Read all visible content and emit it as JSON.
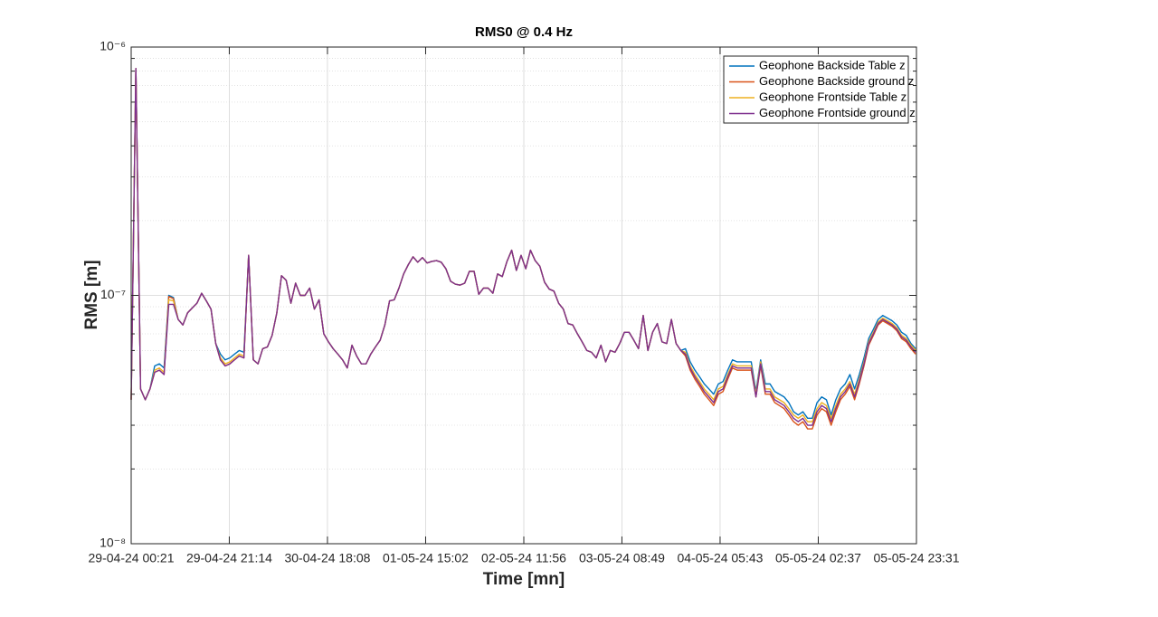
{
  "chart_data": {
    "type": "line",
    "title": "RMS0 @ 0.4 Hz",
    "xlabel": "Time [mn]",
    "ylabel": "RMS [m]",
    "log_y": true,
    "grid": true,
    "minor_grid": true,
    "legend": "upper right",
    "xlim": [
      0,
      10030
    ],
    "xticks": [
      {
        "value": 0,
        "label": "29-04-24 00:21"
      },
      {
        "value": 1253,
        "label": "29-04-24 21:14"
      },
      {
        "value": 2507,
        "label": "30-04-24 18:08"
      },
      {
        "value": 3761,
        "label": "01-05-24 15:02"
      },
      {
        "value": 5015,
        "label": "02-05-24 11:56"
      },
      {
        "value": 6268,
        "label": "03-05-24 08:49"
      },
      {
        "value": 7522,
        "label": "04-05-24 05:43"
      },
      {
        "value": 8776,
        "label": "05-05-24 02:37"
      },
      {
        "value": 10030,
        "label": "05-05-24 23:31"
      }
    ],
    "ylim": [
      1e-08,
      1e-06
    ],
    "yticks": [
      {
        "value": 1e-08,
        "label": "10⁻⁸"
      },
      {
        "value": 1e-07,
        "label": "10⁻⁷"
      },
      {
        "value": 1e-06,
        "label": "10⁻⁶"
      }
    ],
    "yminorticks": [
      2e-08,
      3e-08,
      4e-08,
      5e-08,
      6e-08,
      7e-08,
      8e-08,
      9e-08,
      2e-07,
      3e-07,
      4e-07,
      5e-07,
      6e-07,
      7e-07,
      8e-07,
      9e-07
    ],
    "x": [
      0,
      60,
      120,
      180,
      240,
      300,
      360,
      420,
      480,
      540,
      600,
      660,
      720,
      780,
      840,
      900,
      960,
      1020,
      1080,
      1140,
      1200,
      1260,
      1320,
      1380,
      1440,
      1500,
      1560,
      1620,
      1680,
      1740,
      1800,
      1860,
      1920,
      1980,
      2040,
      2100,
      2160,
      2220,
      2280,
      2340,
      2400,
      2460,
      2520,
      2580,
      2640,
      2700,
      2760,
      2820,
      2880,
      2940,
      3000,
      3060,
      3120,
      3180,
      3240,
      3300,
      3360,
      3420,
      3480,
      3540,
      3600,
      3660,
      3720,
      3780,
      3840,
      3900,
      3960,
      4020,
      4080,
      4140,
      4200,
      4260,
      4320,
      4380,
      4440,
      4500,
      4560,
      4620,
      4680,
      4740,
      4800,
      4860,
      4920,
      4980,
      5040,
      5100,
      5160,
      5220,
      5280,
      5340,
      5400,
      5460,
      5520,
      5580,
      5640,
      5700,
      5760,
      5820,
      5880,
      5940,
      6000,
      6060,
      6120,
      6180,
      6240,
      6300,
      6360,
      6420,
      6480,
      6540,
      6600,
      6660,
      6720,
      6780,
      6840,
      6900,
      6960,
      7020,
      7080,
      7140,
      7200,
      7260,
      7320,
      7380,
      7440,
      7500,
      7560,
      7620,
      7680,
      7740,
      7800,
      7860,
      7920,
      7980,
      8040,
      8100,
      8160,
      8220,
      8280,
      8340,
      8400,
      8460,
      8520,
      8580,
      8640,
      8700,
      8760,
      8820,
      8880,
      8940,
      9000,
      9060,
      9120,
      9180,
      9240,
      9300,
      9360,
      9420,
      9480,
      9540,
      9600,
      9660,
      9720,
      9780,
      9840,
      9900,
      9960,
      10020
    ],
    "series": [
      {
        "name": "Geophone Backside Table z",
        "color": "#0072BD",
        "values": [
          3.8e-08,
          8.2e-07,
          4.2e-08,
          3.8e-08,
          4.2e-08,
          5.2e-08,
          5.3e-08,
          5.1e-08,
          1e-07,
          9.8e-08,
          8e-08,
          7.6e-08,
          8.5e-08,
          8.9e-08,
          9.3e-08,
          1.02e-07,
          9.5e-08,
          8.8e-08,
          6.4e-08,
          5.8e-08,
          5.5e-08,
          5.6e-08,
          5.8e-08,
          6e-08,
          5.9e-08,
          1.45e-07,
          5.5e-08,
          5.3e-08,
          6.1e-08,
          6.2e-08,
          6.9e-08,
          8.5e-08,
          1.2e-07,
          1.15e-07,
          9.3e-08,
          1.12e-07,
          1e-07,
          1e-07,
          1.07e-07,
          8.8e-08,
          9.6e-08,
          7e-08,
          6.5e-08,
          6.1e-08,
          5.8e-08,
          5.5e-08,
          5.1e-08,
          6.3e-08,
          5.7e-08,
          5.3e-08,
          5.3e-08,
          5.8e-08,
          6.2e-08,
          6.6e-08,
          7.6e-08,
          9.5e-08,
          9.6e-08,
          1.07e-07,
          1.22e-07,
          1.33e-07,
          1.43e-07,
          1.36e-07,
          1.42e-07,
          1.35e-07,
          1.37e-07,
          1.38e-07,
          1.36e-07,
          1.28e-07,
          1.14e-07,
          1.11e-07,
          1.1e-07,
          1.12e-07,
          1.25e-07,
          1.25e-07,
          1.01e-07,
          1.07e-07,
          1.07e-07,
          1.02e-07,
          1.22e-07,
          1.19e-07,
          1.37e-07,
          1.52e-07,
          1.26e-07,
          1.45e-07,
          1.28e-07,
          1.52e-07,
          1.38e-07,
          1.31e-07,
          1.13e-07,
          1.06e-07,
          1.04e-07,
          9.3e-08,
          8.8e-08,
          7.7e-08,
          7.6e-08,
          7e-08,
          6.5e-08,
          6e-08,
          5.9e-08,
          5.6e-08,
          6.3e-08,
          5.4e-08,
          6e-08,
          5.9e-08,
          6.4e-08,
          7.1e-08,
          7.1e-08,
          6.6e-08,
          6.1e-08,
          8.3e-08,
          6e-08,
          7.1e-08,
          7.7e-08,
          6.5e-08,
          6.4e-08,
          8e-08,
          6.4e-08,
          6e-08,
          6.1e-08,
          5.4e-08,
          5e-08,
          4.7e-08,
          4.4e-08,
          4.2e-08,
          4e-08,
          4.4e-08,
          4.5e-08,
          5e-08,
          5.5e-08,
          5.4e-08,
          5.4e-08,
          5.4e-08,
          5.4e-08,
          4.1e-08,
          5.5e-08,
          4.4e-08,
          4.4e-08,
          4.1e-08,
          4e-08,
          3.9e-08,
          3.7e-08,
          3.4e-08,
          3.3e-08,
          3.4e-08,
          3.2e-08,
          3.2e-08,
          3.7e-08,
          3.9e-08,
          3.8e-08,
          3.3e-08,
          3.8e-08,
          4.2e-08,
          4.4e-08,
          4.8e-08,
          4.2e-08,
          4.8e-08,
          5.6e-08,
          6.7e-08,
          7.3e-08,
          8e-08,
          8.3e-08,
          8.1e-08,
          7.9e-08,
          7.6e-08,
          7.1e-08,
          6.9e-08,
          6.4e-08,
          6.1e-08
        ]
      },
      {
        "name": "Geophone Backside ground z",
        "color": "#D95319",
        "values": [
          3.8e-08,
          8.2e-07,
          4.2e-08,
          3.8e-08,
          4.2e-08,
          4.9e-08,
          5e-08,
          4.8e-08,
          9.9e-08,
          9.7e-08,
          8e-08,
          7.6e-08,
          8.5e-08,
          8.9e-08,
          9.3e-08,
          1.02e-07,
          9.5e-08,
          8.8e-08,
          6.4e-08,
          5.5e-08,
          5.2e-08,
          5.3e-08,
          5.5e-08,
          5.7e-08,
          5.6e-08,
          1.45e-07,
          5.5e-08,
          5.3e-08,
          6.1e-08,
          6.2e-08,
          6.9e-08,
          8.5e-08,
          1.2e-07,
          1.15e-07,
          9.3e-08,
          1.12e-07,
          1e-07,
          1e-07,
          1.07e-07,
          8.8e-08,
          9.6e-08,
          7e-08,
          6.5e-08,
          6.1e-08,
          5.8e-08,
          5.5e-08,
          5.1e-08,
          6.3e-08,
          5.7e-08,
          5.3e-08,
          5.3e-08,
          5.8e-08,
          6.2e-08,
          6.6e-08,
          7.6e-08,
          9.5e-08,
          9.6e-08,
          1.07e-07,
          1.22e-07,
          1.33e-07,
          1.43e-07,
          1.36e-07,
          1.42e-07,
          1.35e-07,
          1.37e-07,
          1.38e-07,
          1.36e-07,
          1.28e-07,
          1.14e-07,
          1.11e-07,
          1.1e-07,
          1.12e-07,
          1.25e-07,
          1.25e-07,
          1.01e-07,
          1.07e-07,
          1.07e-07,
          1.02e-07,
          1.22e-07,
          1.19e-07,
          1.37e-07,
          1.52e-07,
          1.26e-07,
          1.45e-07,
          1.28e-07,
          1.52e-07,
          1.38e-07,
          1.31e-07,
          1.13e-07,
          1.06e-07,
          1.04e-07,
          9.3e-08,
          8.8e-08,
          7.7e-08,
          7.6e-08,
          7e-08,
          6.5e-08,
          6e-08,
          5.9e-08,
          5.6e-08,
          6.3e-08,
          5.4e-08,
          6e-08,
          5.9e-08,
          6.4e-08,
          7.1e-08,
          7.1e-08,
          6.6e-08,
          6.1e-08,
          8.3e-08,
          6e-08,
          7.1e-08,
          7.7e-08,
          6.5e-08,
          6.4e-08,
          8e-08,
          6.4e-08,
          6e-08,
          5.7e-08,
          5e-08,
          4.6e-08,
          4.3e-08,
          4e-08,
          3.8e-08,
          3.6e-08,
          4e-08,
          4.1e-08,
          4.6e-08,
          5.1e-08,
          5e-08,
          5e-08,
          5e-08,
          5e-08,
          3.9e-08,
          5.2e-08,
          4e-08,
          4e-08,
          3.7e-08,
          3.6e-08,
          3.5e-08,
          3.3e-08,
          3.1e-08,
          3e-08,
          3.1e-08,
          2.9e-08,
          2.9e-08,
          3.3e-08,
          3.5e-08,
          3.4e-08,
          3e-08,
          3.4e-08,
          3.8e-08,
          4e-08,
          4.3e-08,
          3.8e-08,
          4.4e-08,
          5.2e-08,
          6.3e-08,
          6.9e-08,
          7.6e-08,
          7.9e-08,
          7.7e-08,
          7.5e-08,
          7.2e-08,
          6.7e-08,
          6.5e-08,
          6.1e-08,
          5.8e-08
        ]
      },
      {
        "name": "Geophone Frontside Table z",
        "color": "#EDB120",
        "values": [
          3.8e-08,
          8.2e-07,
          4.2e-08,
          3.8e-08,
          4.2e-08,
          5e-08,
          5.1e-08,
          4.9e-08,
          9.6e-08,
          9.5e-08,
          8e-08,
          7.6e-08,
          8.5e-08,
          8.9e-08,
          9.3e-08,
          1.02e-07,
          9.5e-08,
          8.8e-08,
          6.4e-08,
          5.6e-08,
          5.3e-08,
          5.4e-08,
          5.6e-08,
          5.8e-08,
          5.7e-08,
          1.45e-07,
          5.5e-08,
          5.3e-08,
          6.1e-08,
          6.2e-08,
          6.9e-08,
          8.5e-08,
          1.2e-07,
          1.15e-07,
          9.3e-08,
          1.12e-07,
          1e-07,
          1e-07,
          1.07e-07,
          8.8e-08,
          9.6e-08,
          7e-08,
          6.5e-08,
          6.1e-08,
          5.8e-08,
          5.5e-08,
          5.1e-08,
          6.3e-08,
          5.7e-08,
          5.3e-08,
          5.3e-08,
          5.8e-08,
          6.2e-08,
          6.6e-08,
          7.6e-08,
          9.5e-08,
          9.6e-08,
          1.07e-07,
          1.22e-07,
          1.33e-07,
          1.43e-07,
          1.36e-07,
          1.42e-07,
          1.35e-07,
          1.37e-07,
          1.38e-07,
          1.36e-07,
          1.28e-07,
          1.14e-07,
          1.11e-07,
          1.1e-07,
          1.12e-07,
          1.25e-07,
          1.25e-07,
          1.01e-07,
          1.07e-07,
          1.07e-07,
          1.02e-07,
          1.22e-07,
          1.19e-07,
          1.37e-07,
          1.52e-07,
          1.26e-07,
          1.45e-07,
          1.28e-07,
          1.52e-07,
          1.38e-07,
          1.31e-07,
          1.13e-07,
          1.06e-07,
          1.04e-07,
          9.3e-08,
          8.8e-08,
          7.7e-08,
          7.6e-08,
          7e-08,
          6.5e-08,
          6e-08,
          5.9e-08,
          5.6e-08,
          6.3e-08,
          5.4e-08,
          6e-08,
          5.9e-08,
          6.4e-08,
          7.1e-08,
          7.1e-08,
          6.6e-08,
          6.1e-08,
          8.3e-08,
          6e-08,
          7.1e-08,
          7.7e-08,
          6.5e-08,
          6.4e-08,
          8e-08,
          6.4e-08,
          6e-08,
          5.9e-08,
          5.2e-08,
          4.8e-08,
          4.5e-08,
          4.2e-08,
          4e-08,
          3.8e-08,
          4.2e-08,
          4.3e-08,
          4.8e-08,
          5.3e-08,
          5.2e-08,
          5.2e-08,
          5.2e-08,
          5.2e-08,
          4e-08,
          5.4e-08,
          4.2e-08,
          4.2e-08,
          3.9e-08,
          3.8e-08,
          3.7e-08,
          3.5e-08,
          3.3e-08,
          3.2e-08,
          3.3e-08,
          3.1e-08,
          3.1e-08,
          3.5e-08,
          3.7e-08,
          3.6e-08,
          3.2e-08,
          3.6e-08,
          4e-08,
          4.2e-08,
          4.5e-08,
          4e-08,
          4.6e-08,
          5.4e-08,
          6.5e-08,
          7.1e-08,
          7.8e-08,
          8.1e-08,
          7.9e-08,
          7.7e-08,
          7.4e-08,
          6.9e-08,
          6.7e-08,
          6.3e-08,
          6e-08
        ]
      },
      {
        "name": "Geophone Frontside ground z",
        "color": "#7E2F8E",
        "values": [
          3.8e-08,
          8.2e-07,
          4.2e-08,
          3.8e-08,
          4.2e-08,
          4.9e-08,
          5e-08,
          4.8e-08,
          9.2e-08,
          9.2e-08,
          8e-08,
          7.6e-08,
          8.5e-08,
          8.9e-08,
          9.3e-08,
          1.02e-07,
          9.5e-08,
          8.8e-08,
          6.4e-08,
          5.5e-08,
          5.2e-08,
          5.3e-08,
          5.5e-08,
          5.7e-08,
          5.6e-08,
          1.45e-07,
          5.5e-08,
          5.3e-08,
          6.1e-08,
          6.2e-08,
          6.9e-08,
          8.5e-08,
          1.2e-07,
          1.15e-07,
          9.3e-08,
          1.12e-07,
          1e-07,
          1e-07,
          1.07e-07,
          8.8e-08,
          9.6e-08,
          7e-08,
          6.5e-08,
          6.1e-08,
          5.8e-08,
          5.5e-08,
          5.1e-08,
          6.3e-08,
          5.7e-08,
          5.3e-08,
          5.3e-08,
          5.8e-08,
          6.2e-08,
          6.6e-08,
          7.6e-08,
          9.5e-08,
          9.6e-08,
          1.07e-07,
          1.22e-07,
          1.33e-07,
          1.43e-07,
          1.36e-07,
          1.42e-07,
          1.35e-07,
          1.37e-07,
          1.38e-07,
          1.36e-07,
          1.28e-07,
          1.14e-07,
          1.11e-07,
          1.1e-07,
          1.12e-07,
          1.25e-07,
          1.25e-07,
          1.01e-07,
          1.07e-07,
          1.07e-07,
          1.02e-07,
          1.22e-07,
          1.19e-07,
          1.37e-07,
          1.52e-07,
          1.26e-07,
          1.45e-07,
          1.28e-07,
          1.52e-07,
          1.38e-07,
          1.31e-07,
          1.13e-07,
          1.06e-07,
          1.04e-07,
          9.3e-08,
          8.8e-08,
          7.7e-08,
          7.6e-08,
          7e-08,
          6.5e-08,
          6e-08,
          5.9e-08,
          5.6e-08,
          6.3e-08,
          5.4e-08,
          6e-08,
          5.9e-08,
          6.4e-08,
          7.1e-08,
          7.1e-08,
          6.6e-08,
          6.1e-08,
          8.3e-08,
          6e-08,
          7.1e-08,
          7.7e-08,
          6.5e-08,
          6.4e-08,
          8e-08,
          6.4e-08,
          6e-08,
          5.8e-08,
          5.1e-08,
          4.7e-08,
          4.4e-08,
          4.1e-08,
          3.9e-08,
          3.7e-08,
          4.1e-08,
          4.2e-08,
          4.7e-08,
          5.2e-08,
          5.1e-08,
          5.1e-08,
          5.1e-08,
          5.1e-08,
          3.9e-08,
          5.3e-08,
          4.1e-08,
          4.1e-08,
          3.8e-08,
          3.7e-08,
          3.6e-08,
          3.4e-08,
          3.2e-08,
          3.1e-08,
          3.2e-08,
          3e-08,
          3e-08,
          3.4e-08,
          3.6e-08,
          3.5e-08,
          3.1e-08,
          3.5e-08,
          3.9e-08,
          4.1e-08,
          4.4e-08,
          3.9e-08,
          4.5e-08,
          5.3e-08,
          6.4e-08,
          7e-08,
          7.7e-08,
          8e-08,
          7.8e-08,
          7.6e-08,
          7.3e-08,
          6.8e-08,
          6.6e-08,
          6.2e-08,
          5.9e-08
        ]
      }
    ]
  }
}
